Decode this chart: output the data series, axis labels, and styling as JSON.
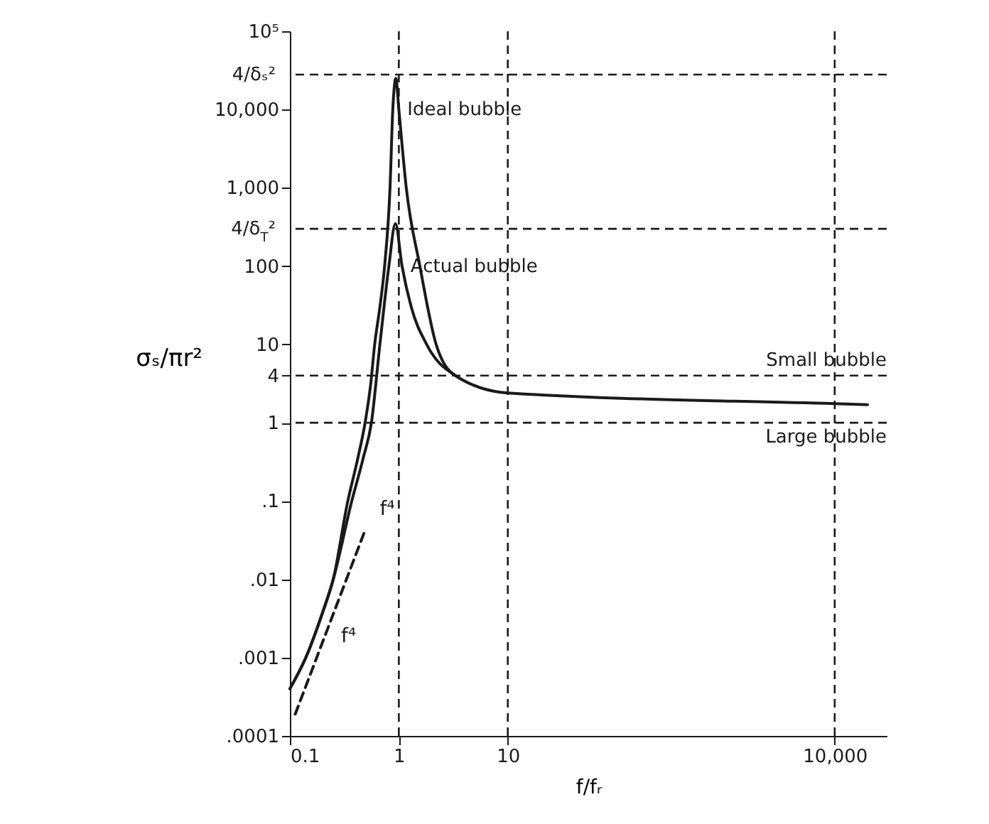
{
  "chart_data": {
    "type": "line",
    "xlabel": "f/fᵣ",
    "ylabel": "σₛ/πr²",
    "log": "xy",
    "grid": false,
    "legend": false,
    "marker": "none",
    "xlim": [
      0.1,
      30000
    ],
    "xticks": [
      0.1,
      1,
      10,
      {
        "value": 10000,
        "label": "10,000"
      }
    ],
    "ylim": [
      0.0001,
      100000
    ],
    "yticks": [
      {
        "value": 0.0001,
        "label": ".0001"
      },
      {
        "value": 0.001,
        "label": ".001"
      },
      {
        "value": 0.01,
        "label": ".01"
      },
      {
        "value": 0.1,
        "label": ".1"
      },
      1,
      4,
      10,
      100,
      {
        "value": 1000,
        "label": "1,000"
      },
      {
        "value": 10000,
        "label": "10,000"
      },
      {
        "value": 100000,
        "label": "10⁵"
      }
    ],
    "series": [
      {
        "name": "Ideal bubble",
        "color": "#1a1a1a",
        "line_style": "solid",
        "x": [
          0.1,
          0.14,
          0.2,
          0.25,
          0.34,
          0.42,
          0.49,
          0.55,
          0.6,
          0.67,
          0.74,
          0.83,
          0.88,
          0.94,
          1.0,
          1.17,
          1.56,
          2.2,
          3.3,
          10,
          10000,
          20000
        ],
        "values": [
          0.0004,
          0.001,
          0.0038,
          0.01,
          0.1,
          0.35,
          1,
          3,
          10,
          30,
          100,
          1000,
          10000,
          25000,
          10000,
          1000,
          100,
          10,
          4,
          2.4,
          1.75,
          1.7
        ]
      },
      {
        "name": "Actual bubble",
        "color": "#1a1a1a",
        "line_style": "solid",
        "x": [
          0.1,
          0.14,
          0.2,
          0.25,
          0.37,
          0.47,
          0.56,
          0.67,
          0.81,
          0.93,
          1.07,
          1.3,
          1.8,
          3.3
        ],
        "values": [
          0.0004,
          0.001,
          0.0038,
          0.01,
          0.1,
          0.35,
          1,
          10,
          100,
          350,
          100,
          30,
          10,
          4
        ]
      },
      {
        "color": "#1a1a1a",
        "line_style": "dashed",
        "x": [
          0.112,
          0.495
        ],
        "values": [
          0.00019,
          0.044
        ]
      }
    ],
    "ref_lines": [
      {
        "axis": "y",
        "value": 28000,
        "label": "4/δₛ²",
        "line_style": "dashed"
      },
      {
        "axis": "y",
        "value": 300,
        "label": "4/δ$_{T}$²",
        "line_style": "dashed"
      },
      {
        "axis": "y",
        "value": 4,
        "label": "Small bubble",
        "line_style": "dashed"
      },
      {
        "axis": "y",
        "value": 1,
        "label": "Large bubble",
        "line_style": "dashed"
      },
      {
        "axis": "x",
        "value": 1,
        "line_style": "dashed"
      },
      {
        "axis": "x",
        "value": 10,
        "line_style": "dashed"
      },
      {
        "axis": "x",
        "value": 10000,
        "line_style": "dashed"
      }
    ],
    "annotations": [
      "f⁴",
      "f⁴"
    ]
  }
}
